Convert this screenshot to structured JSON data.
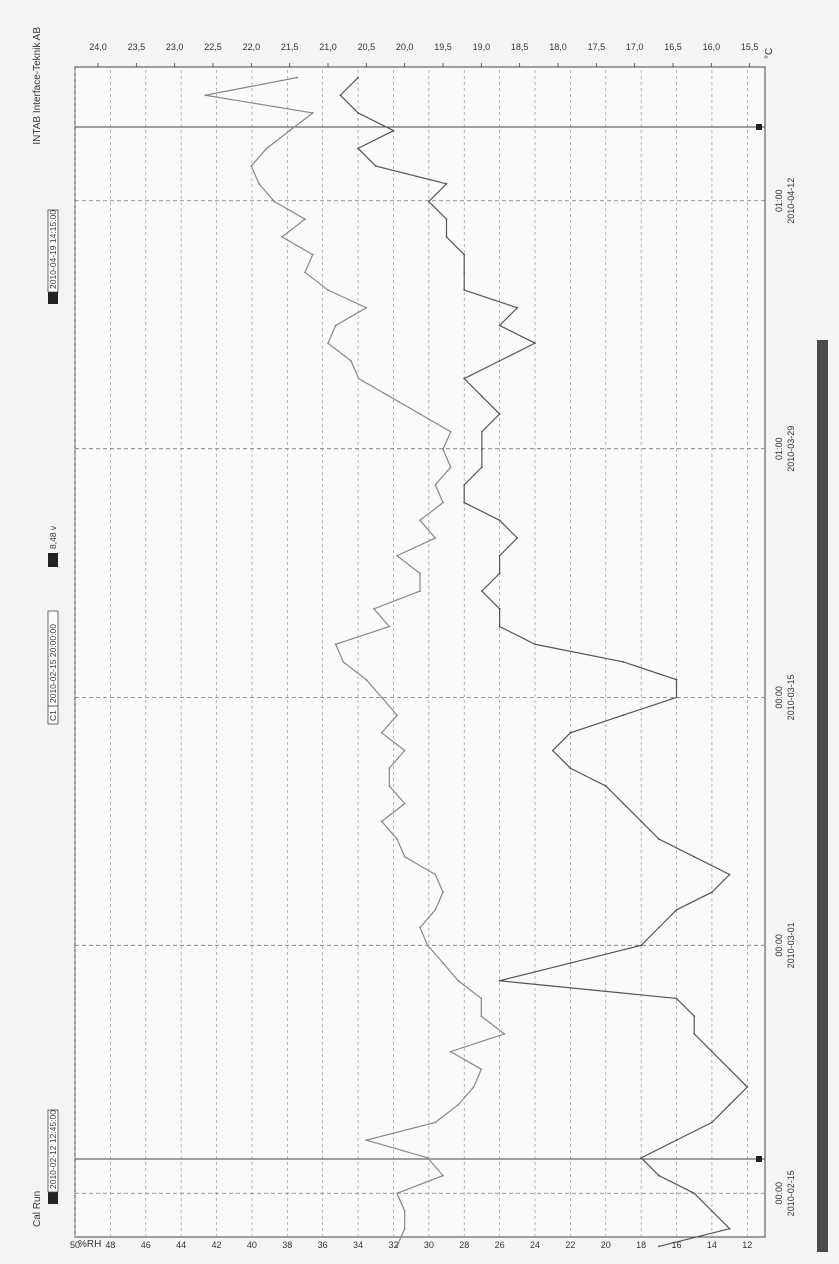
{
  "header": {
    "brand": "INTAB Interface-Teknik AB",
    "run_name": "Cal Run",
    "cursor_start": "2010-02-12 12:45:00",
    "cursor_label": "C1",
    "cursor_value_time": "2010-02-15 20:00:00",
    "cursor_reading": "8,48 v",
    "cursor_end": "2010-04-19 14:15:00"
  },
  "chart_data": {
    "type": "line",
    "title": "",
    "left_axis": {
      "label": "%RH",
      "ylim": [
        11,
        50
      ],
      "ticks": [
        "50",
        "48",
        "46",
        "44",
        "42",
        "40",
        "38",
        "36",
        "34",
        "32",
        "30",
        "28",
        "26",
        "24",
        "22",
        "20",
        "18",
        "16",
        "14",
        "12"
      ]
    },
    "right_axis": {
      "label": "°C",
      "ylim": [
        15.3,
        24.3
      ],
      "ticks": [
        "24,0",
        "23,5",
        "23,0",
        "22,5",
        "22,0",
        "21,5",
        "21,0",
        "20,5",
        "20,0",
        "19,5",
        "19,0",
        "18,5",
        "18,0",
        "17,5",
        "17,0",
        "16,5",
        "16,0",
        "15,5"
      ]
    },
    "x_axis": {
      "range": [
        "2010-02-12 12:45",
        "2010-04-19 14:15"
      ],
      "ticks": [
        {
          "time": "00:00",
          "date": "2010-02-15"
        },
        {
          "time": "00:00",
          "date": "2010-03-01"
        },
        {
          "time": "00:00",
          "date": "2010-03-15"
        },
        {
          "time": "01:00",
          "date": "2010-03-29"
        },
        {
          "time": "01:00",
          "date": "2010-04-12"
        }
      ]
    },
    "grid": true,
    "series": [
      {
        "axis": "left",
        "color": "#555555",
        "x": [
          "2010-02-12",
          "2010-02-13",
          "2010-02-14",
          "2010-02-15",
          "2010-02-16",
          "2010-02-17",
          "2010-02-18",
          "2010-02-19",
          "2010-02-20",
          "2010-02-21",
          "2010-02-22",
          "2010-02-23",
          "2010-02-24",
          "2010-02-25",
          "2010-02-26",
          "2010-02-27",
          "2010-02-28",
          "2010-03-01",
          "2010-03-02",
          "2010-03-03",
          "2010-03-04",
          "2010-03-05",
          "2010-03-06",
          "2010-03-07",
          "2010-03-08",
          "2010-03-09",
          "2010-03-10",
          "2010-03-11",
          "2010-03-12",
          "2010-03-13",
          "2010-03-14",
          "2010-03-15",
          "2010-03-16",
          "2010-03-17",
          "2010-03-18",
          "2010-03-19",
          "2010-03-20",
          "2010-03-21",
          "2010-03-22",
          "2010-03-23",
          "2010-03-24",
          "2010-03-25",
          "2010-03-26",
          "2010-03-27",
          "2010-03-28",
          "2010-03-29",
          "2010-03-30",
          "2010-03-31",
          "2010-04-01",
          "2010-04-02",
          "2010-04-03",
          "2010-04-04",
          "2010-04-05",
          "2010-04-06",
          "2010-04-07",
          "2010-04-08",
          "2010-04-09",
          "2010-04-10",
          "2010-04-11",
          "2010-04-12",
          "2010-04-13",
          "2010-04-14",
          "2010-04-15",
          "2010-04-16",
          "2010-04-17",
          "2010-04-18",
          "2010-04-19"
        ],
        "y": [
          17,
          13,
          14,
          15,
          17,
          18,
          16,
          14,
          13,
          12,
          13,
          14,
          15,
          15,
          16,
          26,
          22,
          18,
          17,
          16,
          14,
          13,
          15,
          17,
          18,
          19,
          20,
          22,
          23,
          22,
          19,
          16,
          16,
          19,
          24,
          26,
          26,
          27,
          26,
          26,
          25,
          26,
          28,
          28,
          27,
          27,
          27,
          26,
          27,
          28,
          26,
          24,
          26,
          25,
          28,
          28,
          28,
          29,
          29,
          30,
          29,
          33,
          34,
          32,
          34,
          35,
          34
        ]
      },
      {
        "axis": "right",
        "color": "#888888",
        "x": [
          "2010-02-12",
          "2010-02-13",
          "2010-02-14",
          "2010-02-15",
          "2010-02-16",
          "2010-02-17",
          "2010-02-18",
          "2010-02-19",
          "2010-02-20",
          "2010-02-21",
          "2010-02-22",
          "2010-02-23",
          "2010-02-24",
          "2010-02-25",
          "2010-02-26",
          "2010-02-27",
          "2010-02-28",
          "2010-03-01",
          "2010-03-02",
          "2010-03-03",
          "2010-03-04",
          "2010-03-05",
          "2010-03-06",
          "2010-03-07",
          "2010-03-08",
          "2010-03-09",
          "2010-03-10",
          "2010-03-11",
          "2010-03-12",
          "2010-03-13",
          "2010-03-14",
          "2010-03-15",
          "2010-03-16",
          "2010-03-17",
          "2010-03-18",
          "2010-03-19",
          "2010-03-20",
          "2010-03-21",
          "2010-03-22",
          "2010-03-23",
          "2010-03-24",
          "2010-03-25",
          "2010-03-26",
          "2010-03-27",
          "2010-03-28",
          "2010-03-29",
          "2010-03-30",
          "2010-03-31",
          "2010-04-01",
          "2010-04-02",
          "2010-04-03",
          "2010-04-04",
          "2010-04-05",
          "2010-04-06",
          "2010-04-07",
          "2010-04-08",
          "2010-04-09",
          "2010-04-10",
          "2010-04-11",
          "2010-04-12",
          "2010-04-13",
          "2010-04-14",
          "2010-04-15",
          "2010-04-16",
          "2010-04-17",
          "2010-04-18",
          "2010-04-19"
        ],
        "y": [
          20.1,
          20.0,
          20.0,
          20.1,
          19.5,
          19.7,
          20.5,
          19.6,
          19.3,
          19.1,
          19.0,
          19.4,
          18.7,
          19.0,
          19.0,
          19.3,
          19.5,
          19.7,
          19.8,
          19.6,
          19.5,
          19.6,
          20.0,
          20.1,
          20.3,
          20.0,
          20.2,
          20.2,
          20.0,
          20.3,
          20.1,
          20.3,
          20.5,
          20.8,
          20.9,
          20.2,
          20.4,
          19.8,
          19.8,
          20.1,
          19.6,
          19.8,
          19.5,
          19.6,
          19.4,
          19.5,
          19.4,
          19.8,
          20.2,
          20.6,
          20.7,
          21.0,
          20.9,
          20.5,
          21.0,
          21.3,
          21.2,
          21.6,
          21.3,
          21.7,
          21.9,
          22.0,
          21.8,
          21.5,
          21.2,
          22.6,
          21.4
        ]
      }
    ]
  }
}
